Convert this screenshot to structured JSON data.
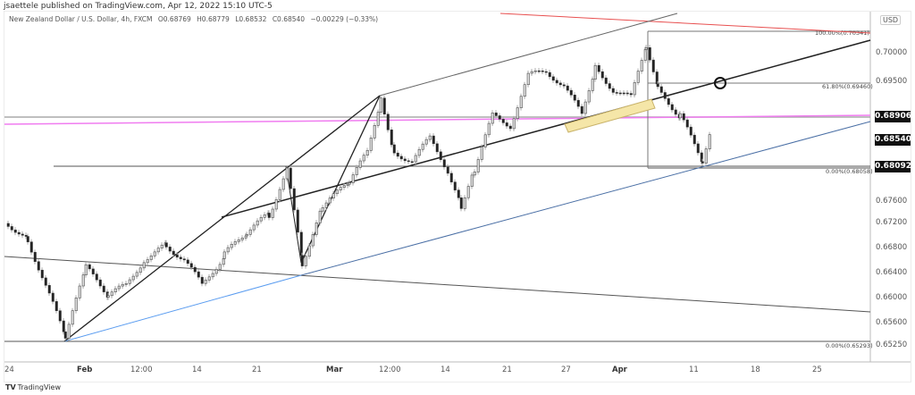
{
  "header": {
    "published": "jsaettele published on TradingView.com, Apr 12, 2022 15:10 UTC-5",
    "symbol": "New Zealand Dollar / U.S. Dollar, 4h, FXCM",
    "open": "O0.68769",
    "high": "H0.68779",
    "low": "L0.68532",
    "close": "C0.68540",
    "change": "−0.00229 (−0.33%)"
  },
  "price_axis": {
    "currency": "USD",
    "tags": {
      "level": "0.68906",
      "last": "0.68540",
      "support": "0.68092"
    }
  },
  "footer": {
    "brand": "TradingView",
    "brand_icon": "tradingview-logo-icon"
  },
  "colors": {
    "candle": "#222222",
    "wick": "#999999",
    "pink_line": "#f07cf0",
    "red_line": "#e85050",
    "blue_line": "#4a6fa5",
    "light_blue_line": "#5a9cf0",
    "highlight_box": "#f5e6a8"
  },
  "chart_data": {
    "type": "candlestick",
    "title": "New Zealand Dollar / U.S. Dollar, 4h, FXCM",
    "xlabel": "",
    "ylabel": "USD",
    "x_ticks": [
      "24",
      "Feb",
      "12:00",
      "14",
      "21",
      "Mar",
      "12:00",
      "14",
      "21",
      "27",
      "Apr",
      "11",
      "18",
      "25"
    ],
    "y_ticks": [
      0.7,
      0.695,
      0.689,
      0.6854,
      0.6809,
      0.676,
      0.672,
      0.668,
      0.664,
      0.66,
      0.656,
      0.6525
    ],
    "ylim": [
      0.651,
      0.7045
    ],
    "ohlc_last": {
      "open": 0.68769,
      "high": 0.68779,
      "low": 0.68532,
      "close": 0.6854,
      "change": -0.00229,
      "change_pct": -0.33
    },
    "fib_levels": [
      {
        "label": "100.00%(0.70341)",
        "value": 0.70341
      },
      {
        "label": "61.80%(0.69460)",
        "value": 0.6946
      },
      {
        "label": "0.00%(0.68058)",
        "value": 0.68058
      },
      {
        "label": "0.00%(0.65293)",
        "value": 0.65293
      }
    ],
    "horizontal_levels": [
      0.68906,
      0.68092
    ],
    "approx_close_path": [
      {
        "x": "Jan 24",
        "y": 0.669
      },
      {
        "x": "Jan 28",
        "y": 0.653
      },
      {
        "x": "Feb 2",
        "y": 0.664
      },
      {
        "x": "Feb 4",
        "y": 0.6625
      },
      {
        "x": "Feb 9",
        "y": 0.669
      },
      {
        "x": "Feb 14",
        "y": 0.662
      },
      {
        "x": "Feb 18",
        "y": 0.669
      },
      {
        "x": "Feb 22",
        "y": 0.6795
      },
      {
        "x": "Feb 24",
        "y": 0.6645
      },
      {
        "x": "Mar 1",
        "y": 0.678
      },
      {
        "x": "Mar 3",
        "y": 0.692
      },
      {
        "x": "Mar 8",
        "y": 0.682
      },
      {
        "x": "Mar 11",
        "y": 0.686
      },
      {
        "x": "Mar 15",
        "y": 0.674
      },
      {
        "x": "Mar 18",
        "y": 0.69
      },
      {
        "x": "Mar 24",
        "y": 0.697
      },
      {
        "x": "Mar 28",
        "y": 0.688
      },
      {
        "x": "Mar 30",
        "y": 0.698
      },
      {
        "x": "Apr 1",
        "y": 0.69
      },
      {
        "x": "Apr 4",
        "y": 0.703
      },
      {
        "x": "Apr 7",
        "y": 0.689
      },
      {
        "x": "Apr 11",
        "y": 0.681
      },
      {
        "x": "Apr 12",
        "y": 0.6854
      }
    ],
    "annotations": [
      "rising channel",
      "trendlines",
      "circle marker at 61.8% retracement",
      "highlighted support zone box"
    ]
  }
}
